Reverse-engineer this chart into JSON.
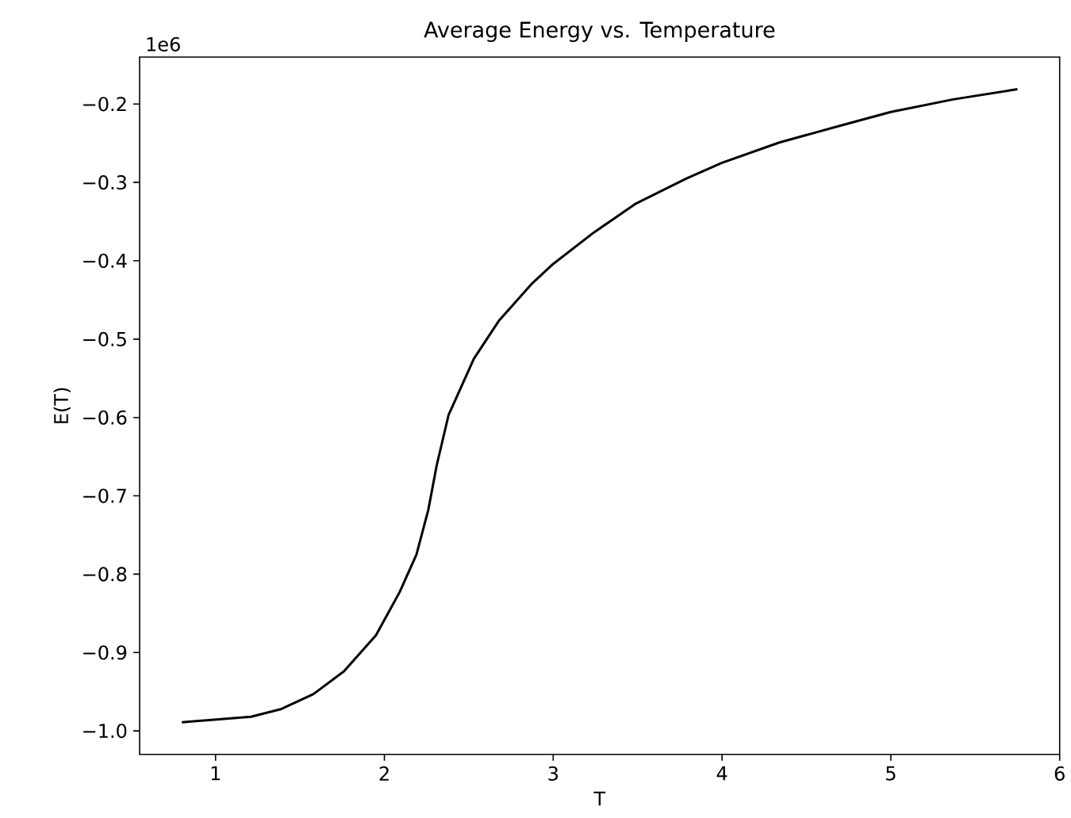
{
  "chart_data": {
    "type": "line",
    "title": "Average Energy vs. Temperature",
    "xlabel": "T",
    "ylabel": "E(T)",
    "annotations": [
      "1e6"
    ],
    "x": [
      0.8,
      1.21,
      1.39,
      1.58,
      1.76,
      1.95,
      2.09,
      2.19,
      2.26,
      2.31,
      2.38,
      2.53,
      2.68,
      2.87,
      3.0,
      3.24,
      3.49,
      3.79,
      4.0,
      4.34,
      4.71,
      5.0,
      5.37,
      5.75
    ],
    "series": [
      {
        "color": "#000000",
        "values": [
          -0.989,
          -0.982,
          -0.972,
          -0.953,
          -0.924,
          -0.878,
          -0.823,
          -0.775,
          -0.718,
          -0.661,
          -0.597,
          -0.525,
          -0.476,
          -0.43,
          -0.404,
          -0.364,
          -0.327,
          -0.295,
          -0.275,
          -0.249,
          -0.227,
          -0.21,
          -0.194,
          -0.181
        ]
      }
    ],
    "xlim": [
      0.55,
      6.0
    ],
    "ylim": [
      -1.03,
      -0.14
    ],
    "xticks": [
      1,
      2,
      3,
      4,
      5,
      6
    ],
    "yticks": [
      {
        "value": -1.0,
        "label": "−1.0"
      },
      {
        "value": -0.9,
        "label": "−0.9"
      },
      {
        "value": -0.8,
        "label": "−0.8"
      },
      {
        "value": -0.7,
        "label": "−0.7"
      },
      {
        "value": -0.6,
        "label": "−0.6"
      },
      {
        "value": -0.5,
        "label": "−0.5"
      },
      {
        "value": -0.4,
        "label": "−0.4"
      },
      {
        "value": -0.3,
        "label": "−0.3"
      },
      {
        "value": -0.2,
        "label": "−0.2"
      }
    ]
  }
}
